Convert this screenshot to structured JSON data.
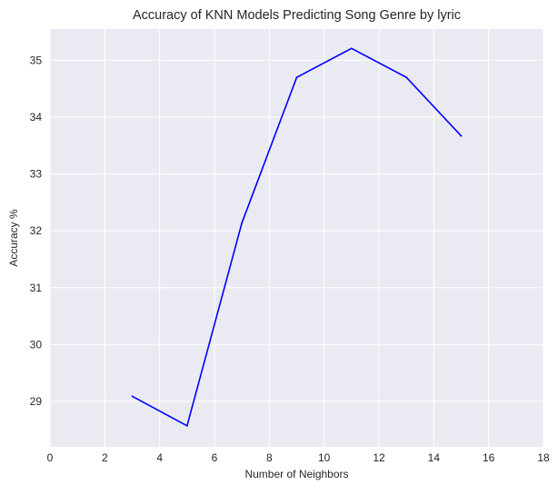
{
  "chart_data": {
    "type": "line",
    "title": "Accuracy of KNN Models Predicting Song Genre by lyric",
    "xlabel": "Number of Neighbors",
    "ylabel": "Accuracy %",
    "xlim": [
      0,
      18
    ],
    "ylim": [
      28.2,
      35.55
    ],
    "x_ticks": [
      0,
      2,
      4,
      6,
      8,
      10,
      12,
      14,
      16,
      18
    ],
    "y_ticks": [
      29,
      30,
      31,
      32,
      33,
      34,
      35
    ],
    "grid": true,
    "style": "seaborn-darkgrid",
    "colors": {
      "plot_background": "#eaeaf2",
      "grid": "#ffffff",
      "series": "#0000ff"
    },
    "series": [
      {
        "x": [
          3,
          5,
          7,
          9,
          11,
          13,
          15
        ],
        "y": [
          29.09,
          28.57,
          32.14,
          34.7,
          35.21,
          34.7,
          33.67
        ]
      }
    ]
  }
}
